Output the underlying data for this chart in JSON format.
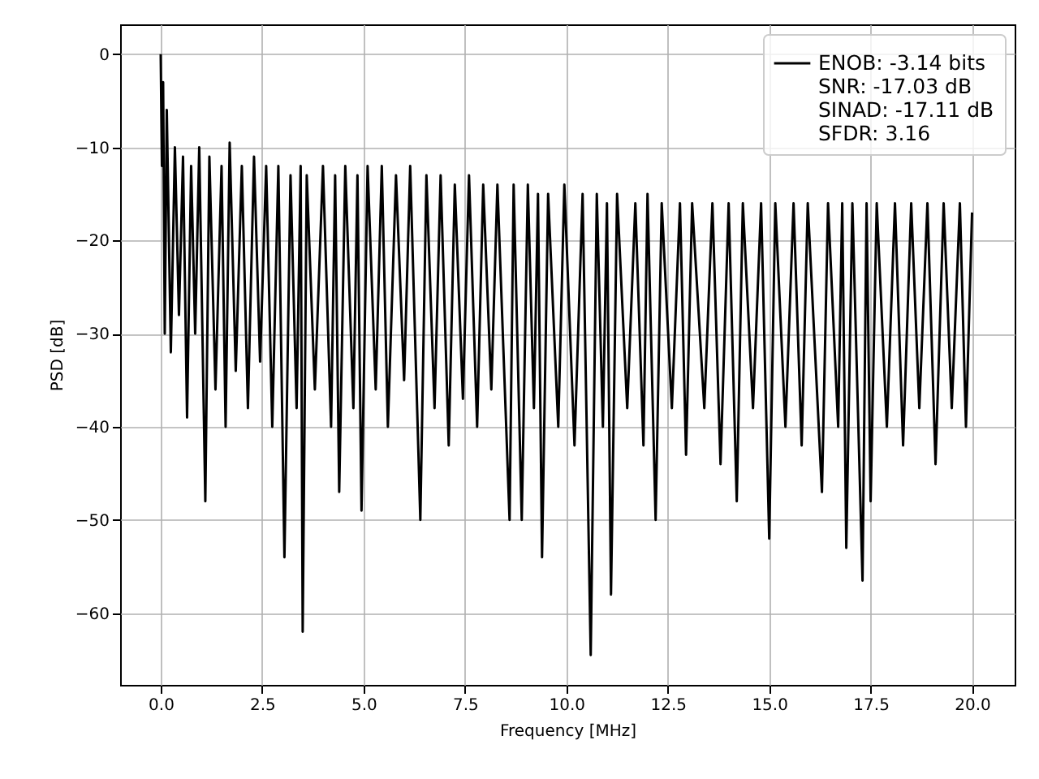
{
  "chart_data": {
    "type": "line",
    "xlabel": "Frequency [MHz]",
    "ylabel": "PSD [dB]",
    "xlim": [
      -1,
      21.05
    ],
    "ylim": [
      -67.7,
      3.2
    ],
    "xticks": [
      {
        "value": 0,
        "label": "0.0"
      },
      {
        "value": 2.5,
        "label": "2.5"
      },
      {
        "value": 5,
        "label": "5.0"
      },
      {
        "value": 7.5,
        "label": "7.5"
      },
      {
        "value": 10,
        "label": "10.0"
      },
      {
        "value": 12.5,
        "label": "12.5"
      },
      {
        "value": 15,
        "label": "15.0"
      },
      {
        "value": 17.5,
        "label": "17.5"
      },
      {
        "value": 20,
        "label": "20.0"
      }
    ],
    "yticks": [
      -60,
      -50,
      -40,
      -30,
      -20,
      -10,
      0
    ],
    "grid": true,
    "legend": "top right",
    "series": [
      {
        "name": "ENOB: -3.14 bits\nSNR: -17.03 dB\nSINAD: -17.11 dB\nSFDR: 3.16",
        "color": "#000000",
        "x": [
          0,
          0.03,
          0.06,
          0.1,
          0.15,
          0.25,
          0.35,
          0.45,
          0.55,
          0.65,
          0.75,
          0.85,
          0.95,
          1.1,
          1.2,
          1.35,
          1.5,
          1.6,
          1.7,
          1.85,
          2.0,
          2.15,
          2.3,
          2.45,
          2.6,
          2.75,
          2.9,
          3.05,
          3.2,
          3.35,
          3.45,
          3.5,
          3.6,
          3.8,
          4.0,
          4.2,
          4.3,
          4.4,
          4.55,
          4.75,
          4.85,
          4.95,
          5.1,
          5.3,
          5.45,
          5.6,
          5.8,
          6.0,
          6.15,
          6.4,
          6.55,
          6.75,
          6.9,
          7.1,
          7.25,
          7.45,
          7.6,
          7.8,
          7.95,
          8.15,
          8.3,
          8.6,
          8.7,
          8.9,
          9.05,
          9.2,
          9.3,
          9.4,
          9.55,
          9.8,
          9.95,
          10.2,
          10.4,
          10.6,
          10.75,
          10.9,
          11.0,
          11.1,
          11.25,
          11.5,
          11.7,
          11.9,
          12.0,
          12.2,
          12.35,
          12.6,
          12.8,
          12.95,
          13.1,
          13.4,
          13.6,
          13.8,
          14.0,
          14.2,
          14.35,
          14.6,
          14.8,
          15.0,
          15.15,
          15.4,
          15.6,
          15.8,
          15.95,
          16.3,
          16.45,
          16.7,
          16.8,
          16.9,
          17.05,
          17.3,
          17.4,
          17.5,
          17.65,
          17.9,
          18.1,
          18.3,
          18.5,
          18.7,
          18.9,
          19.1,
          19.3,
          19.5,
          19.7,
          19.85,
          20.0
        ],
        "values": [
          0,
          -12,
          -3,
          -30,
          -6,
          -32,
          -10,
          -28,
          -11,
          -39,
          -12,
          -30,
          -10,
          -48,
          -11,
          -36,
          -12,
          -40,
          -9.5,
          -34,
          -12,
          -38,
          -11,
          -33,
          -12,
          -40,
          -12,
          -54,
          -13,
          -38,
          -12,
          -62,
          -13,
          -36,
          -12,
          -40,
          -13,
          -47,
          -12,
          -38,
          -13,
          -49,
          -12,
          -36,
          -12,
          -40,
          -13,
          -35,
          -12,
          -50,
          -13,
          -38,
          -13,
          -42,
          -14,
          -37,
          -13,
          -40,
          -14,
          -36,
          -14,
          -50,
          -14,
          -50,
          -14,
          -38,
          -15,
          -54,
          -15,
          -40,
          -14,
          -42,
          -15,
          -64.5,
          -15,
          -40,
          -16,
          -58,
          -15,
          -38,
          -16,
          -42,
          -15,
          -50,
          -16,
          -38,
          -16,
          -43,
          -16,
          -38,
          -16,
          -44,
          -16,
          -48,
          -16,
          -38,
          -16,
          -52,
          -16,
          -40,
          -16,
          -42,
          -16,
          -47,
          -16,
          -40,
          -16,
          -53,
          -16,
          -56.5,
          -16,
          -48,
          -16,
          -40,
          -16,
          -42,
          -16,
          -38,
          -16,
          -44,
          -16,
          -38,
          -16,
          -40,
          -17
        ]
      }
    ]
  }
}
